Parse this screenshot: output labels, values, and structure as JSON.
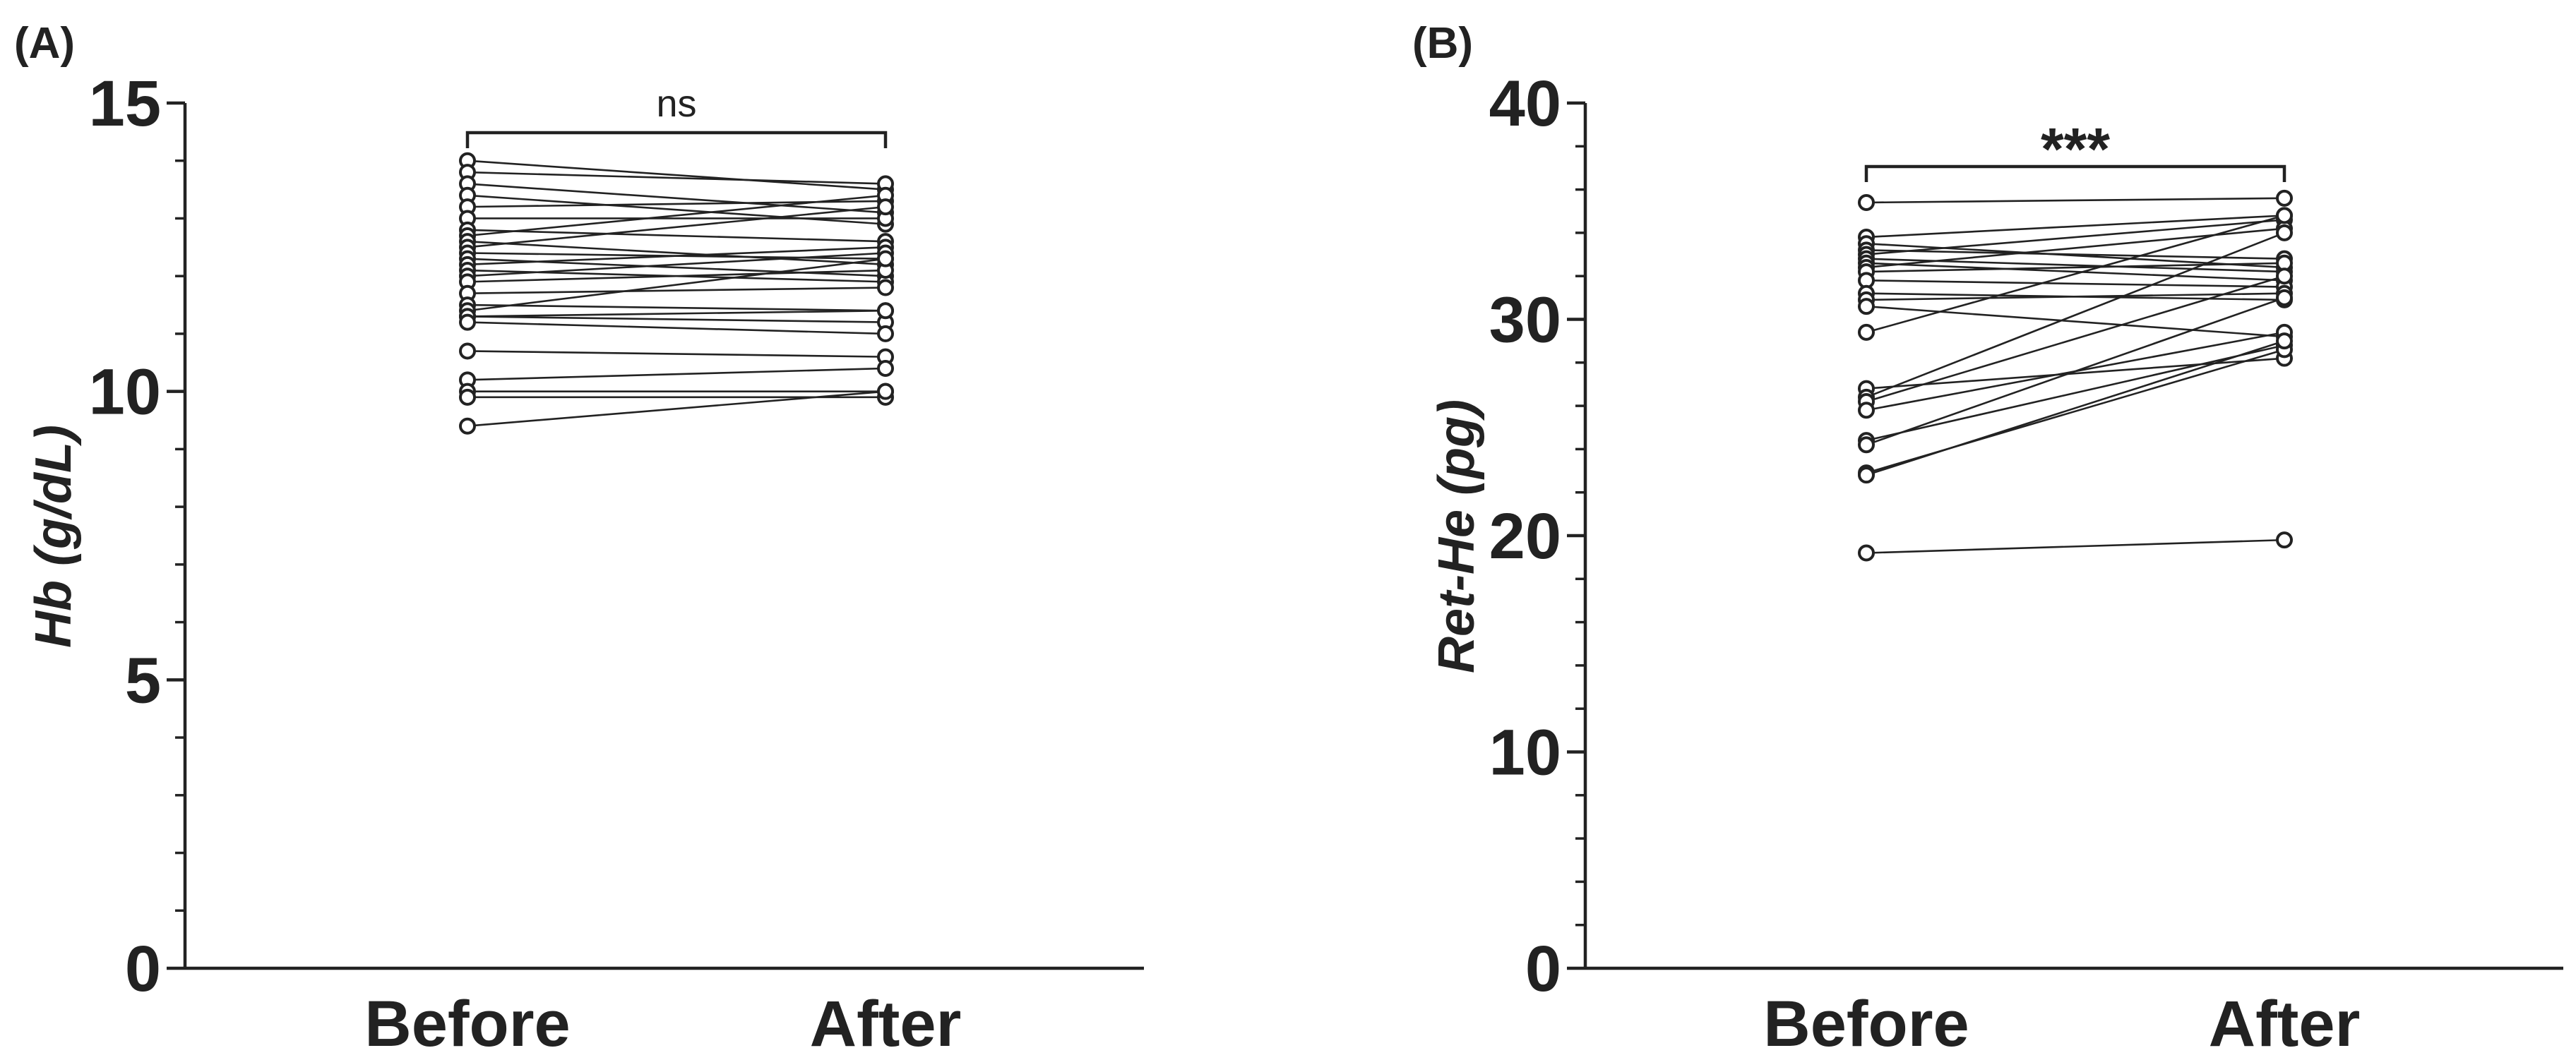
{
  "chart_data": [
    {
      "type": "line",
      "panel_label": "(A)",
      "title": "",
      "xlabel": "",
      "ylabel": "Hb (g/dL)",
      "categories": [
        "Before",
        "After"
      ],
      "ylim": [
        0,
        15
      ],
      "yticks": [
        0,
        5,
        10,
        15
      ],
      "ytick_labels": [
        "0",
        "5",
        "10",
        "15"
      ],
      "minor_step": 1,
      "grid": false,
      "significance": "ns",
      "pairs": [
        [
          14.0,
          13.5
        ],
        [
          13.8,
          13.6
        ],
        [
          13.6,
          13.1
        ],
        [
          13.4,
          12.9
        ],
        [
          13.2,
          13.3
        ],
        [
          13.0,
          13.0
        ],
        [
          12.8,
          12.6
        ],
        [
          12.7,
          13.4
        ],
        [
          12.6,
          12.2
        ],
        [
          12.5,
          13.2
        ],
        [
          12.4,
          12.3
        ],
        [
          12.3,
          12.0
        ],
        [
          12.2,
          12.5
        ],
        [
          12.1,
          11.9
        ],
        [
          12.0,
          12.4
        ],
        [
          11.9,
          12.1
        ],
        [
          11.7,
          11.8
        ],
        [
          11.5,
          11.4
        ],
        [
          11.4,
          12.3
        ],
        [
          11.3,
          11.2
        ],
        [
          11.3,
          11.4
        ],
        [
          11.2,
          11.0
        ],
        [
          10.7,
          10.6
        ],
        [
          10.2,
          10.4
        ],
        [
          10.0,
          10.0
        ],
        [
          9.9,
          9.9
        ],
        [
          9.4,
          10.0
        ]
      ]
    },
    {
      "type": "line",
      "panel_label": "(B)",
      "title": "",
      "xlabel": "",
      "ylabel": "Ret-He (pg)",
      "categories": [
        "Before",
        "After"
      ],
      "ylim": [
        0,
        40
      ],
      "yticks": [
        0,
        10,
        20,
        30,
        40
      ],
      "ytick_labels": [
        "0",
        "10",
        "20",
        "30",
        "40"
      ],
      "minor_step": 2,
      "grid": false,
      "significance": "***",
      "pairs": [
        [
          35.4,
          35.6
        ],
        [
          33.8,
          34.8
        ],
        [
          33.5,
          32.4
        ],
        [
          33.2,
          32.8
        ],
        [
          33.0,
          34.6
        ],
        [
          32.8,
          32.2
        ],
        [
          32.6,
          31.8
        ],
        [
          32.4,
          34.2
        ],
        [
          32.2,
          32.6
        ],
        [
          31.8,
          31.5
        ],
        [
          31.2,
          30.9
        ],
        [
          30.9,
          31.2
        ],
        [
          30.6,
          29.2
        ],
        [
          29.4,
          34.8
        ],
        [
          26.8,
          28.2
        ],
        [
          26.4,
          34.0
        ],
        [
          26.2,
          32.0
        ],
        [
          25.8,
          29.4
        ],
        [
          24.4,
          28.8
        ],
        [
          24.2,
          31.0
        ],
        [
          22.9,
          28.6
        ],
        [
          22.8,
          29.0
        ],
        [
          19.2,
          19.8
        ]
      ]
    }
  ]
}
